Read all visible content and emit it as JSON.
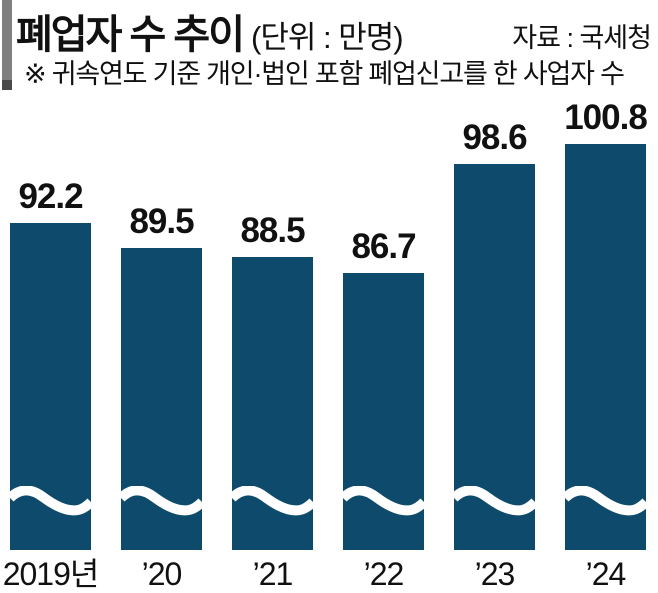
{
  "header": {
    "title": "폐업자 수 추이",
    "unit": "(단위 : 만명)",
    "source": "자료 : 국세청",
    "note": "※ 귀속연도 기준 개인·법인 포함 폐업신고를 한 사업자 수"
  },
  "chart_data": {
    "type": "bar",
    "title": "폐업자 수 추이",
    "unit_label": "만명",
    "source": "국세청",
    "categories": [
      "2019년",
      "’20",
      "’21",
      "’22",
      "’23",
      "’24"
    ],
    "values": [
      92.2,
      89.5,
      88.5,
      86.7,
      98.6,
      100.8
    ],
    "value_labels": [
      "92.2",
      "89.5",
      "88.5",
      "86.7",
      "98.6",
      "100.8"
    ],
    "bar_color": "#0d4a6c",
    "axis_break": true,
    "grid": false,
    "legend": false,
    "orientation": "vertical"
  },
  "colors": {
    "accent_top": "#7f7f7f",
    "accent_tip": "#4a4a4a",
    "text": "#111111",
    "background": "#ffffff",
    "wave": "#ffffff"
  }
}
